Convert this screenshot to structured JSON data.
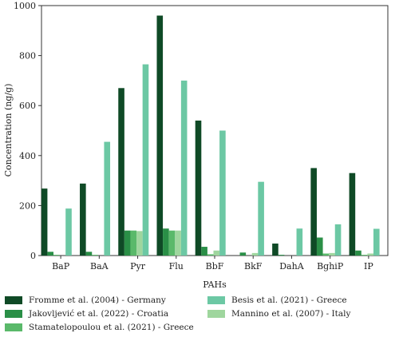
{
  "chart_data": {
    "type": "bar",
    "xlabel": "PAHs",
    "ylabel": "Concentration (ng/g)",
    "ylim": [
      0,
      1000
    ],
    "yticks": [
      "0",
      "200",
      "400",
      "600",
      "800",
      "1000"
    ],
    "grid": false,
    "legend_position": "bottom",
    "categories": [
      "BaP",
      "BaA",
      "Pyr",
      "Flu",
      "BbF",
      "BkF",
      "DahA",
      "BghiP",
      "IP"
    ],
    "series": [
      {
        "name": "Fromme et al. (2004) - Germany",
        "color": "#0f4a26",
        "values": [
          268,
          288,
          670,
          960,
          540,
          0,
          48,
          350,
          330
        ]
      },
      {
        "name": "Jakovljević et al. (2022) - Croatia",
        "color": "#2a8f47",
        "values": [
          15,
          15,
          100,
          108,
          35,
          12,
          3,
          72,
          20
        ]
      },
      {
        "name": "Stamatelopoulou et al. (2021) - Greece",
        "color": "#5ab96a",
        "values": [
          3,
          3,
          100,
          100,
          5,
          0,
          0,
          8,
          3
        ]
      },
      {
        "name": "Mannino et al. (2007) - Italy",
        "color": "#9fd69e",
        "values": [
          0,
          0,
          98,
          100,
          20,
          10,
          0,
          10,
          8
        ]
      },
      {
        "name": "Besis et al. (2021) - Greece",
        "color": "#6cc8a4",
        "values": [
          188,
          455,
          765,
          700,
          500,
          295,
          108,
          125,
          107
        ]
      }
    ]
  }
}
